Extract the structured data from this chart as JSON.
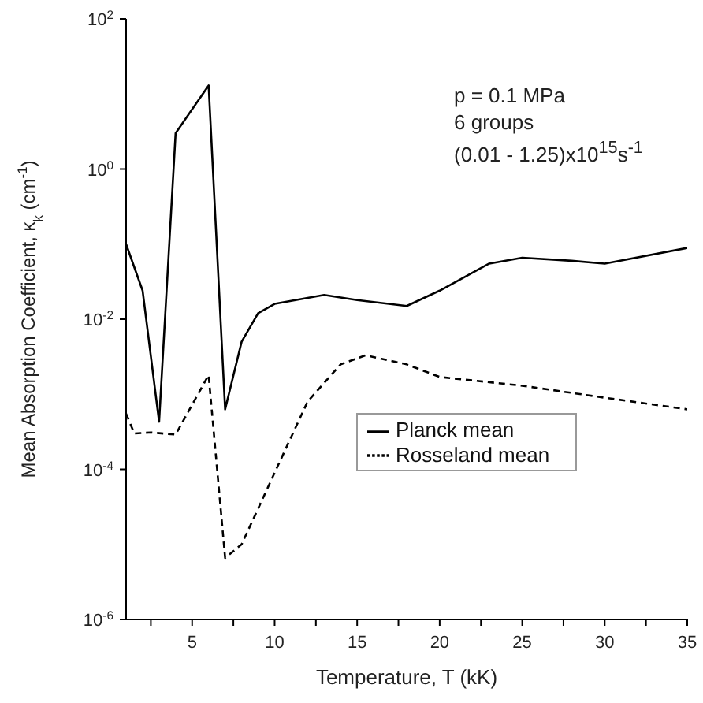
{
  "chart_data": {
    "type": "line",
    "xlabel": "Temperature, T (kK)",
    "ylabel": "Mean Absorption Coefficient, κ$_{k}$ (cm$^{-1}$)",
    "annotations": [
      "p = 0.1 MPa",
      "6 groups",
      "(0.01 - 1.25)x10$^{15}$s$^{-1}$"
    ],
    "series": [
      {
        "name": "Planck mean",
        "color": "#000000",
        "line_style": "solid",
        "x": [
          1,
          2,
          3,
          4,
          6,
          7,
          8,
          9,
          10,
          13,
          15,
          18,
          20,
          23,
          25,
          28,
          30,
          35
        ],
        "values": [
          0.1,
          0.024,
          0.00043,
          3,
          13,
          0.00063,
          0.005,
          0.012,
          0.016,
          0.021,
          0.018,
          0.015,
          0.024,
          0.055,
          0.066,
          0.06,
          0.055,
          0.089
        ]
      },
      {
        "name": "Rosseland mean",
        "color": "#000000",
        "line_style": "dashed",
        "x": [
          1,
          1.5,
          2.5,
          4,
          6,
          7,
          8,
          10,
          12,
          14,
          15.5,
          18,
          20,
          25,
          30,
          35
        ],
        "values": [
          0.00055,
          0.0003,
          0.00031,
          0.00029,
          0.0018,
          6.6e-06,
          1e-05,
          9e-05,
          0.0008,
          0.0025,
          0.0033,
          0.0025,
          0.0017,
          0.0013,
          0.0009,
          0.00063
        ]
      }
    ],
    "log": "y",
    "xlim": [
      1,
      35
    ],
    "ylim": [
      1e-06,
      100
    ],
    "xticks": [
      {
        "value": 2.5,
        "label": null
      },
      5,
      {
        "value": 7.5,
        "label": null
      },
      10,
      {
        "value": 12.5,
        "label": null
      },
      15,
      {
        "value": 17.5,
        "label": null
      },
      20,
      {
        "value": 22.5,
        "label": null
      },
      25,
      {
        "value": 27.5,
        "label": null
      },
      30,
      {
        "value": 32.5,
        "label": null
      },
      35
    ],
    "yticks": [
      {
        "value": 1e-06,
        "label": "10$^{-6}$"
      },
      {
        "value": 0.0001,
        "label": "10$^{-4}$"
      },
      {
        "value": 0.01,
        "label": "10$^{-2}$"
      },
      {
        "value": 1,
        "label": "10$^{0}$"
      },
      {
        "value": 100,
        "label": "10$^{2}$"
      }
    ],
    "grid": false,
    "legend": "bottom right",
    "marker": "none"
  }
}
